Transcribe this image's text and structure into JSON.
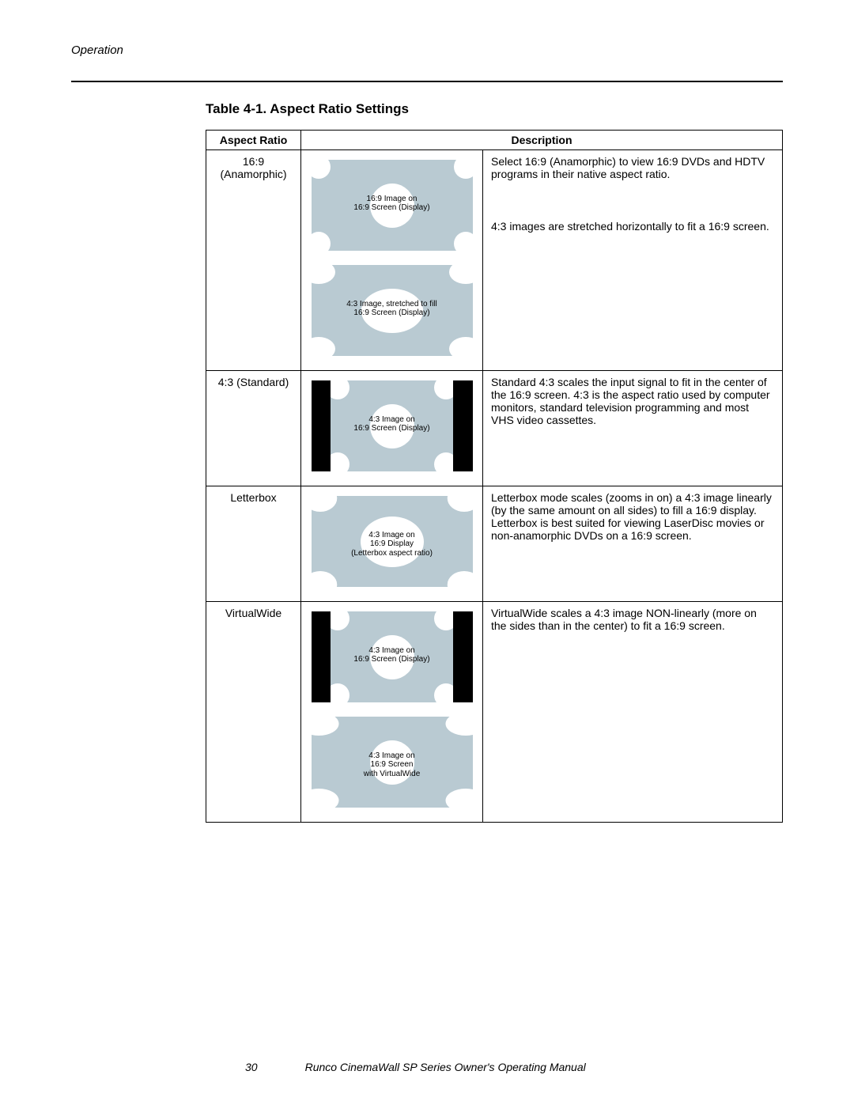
{
  "section": "Operation",
  "table_title": "Table 4-1. Aspect Ratio Settings",
  "headers": {
    "col1": "Aspect Ratio",
    "col2": "Description"
  },
  "diagram_colors": {
    "screen_bg": "#000000",
    "image_bg": "#b9cad2",
    "circle": "#ffffff"
  },
  "rows": [
    {
      "label": "16:9 (Anamorphic)",
      "diagrams": [
        {
          "mode": "full",
          "caption": "16:9 Image on\n16:9 Screen (Display)"
        },
        {
          "mode": "stretched",
          "caption": "4:3 Image, stretched to fill\n16:9 Screen (Display)"
        }
      ],
      "descs": [
        "Select 16:9 (Anamorphic) to view 16:9 DVDs and HDTV programs in their native aspect ratio.",
        "4:3 images are stretched horizontally to fit a 16:9 screen."
      ]
    },
    {
      "label": "4:3 (Standard)",
      "diagrams": [
        {
          "mode": "fourthree",
          "caption": "4:3 Image on\n16:9 Screen (Display)"
        }
      ],
      "descs": [
        "Standard 4:3 scales the input signal to fit in the center of the 16:9 screen. 4:3 is the aspect ratio used by computer monitors, standard television programming and most VHS video cassettes."
      ]
    },
    {
      "label": "Letterbox",
      "diagrams": [
        {
          "mode": "letterbox",
          "caption": "4:3 Image on\n16:9 Display\n(Letterbox aspect ratio)"
        }
      ],
      "descs": [
        "Letterbox mode scales (zooms in on) a 4:3 image linearly (by the same amount on all sides) to fill a 16:9 display. Letterbox is best suited for viewing LaserDisc movies or non-anamorphic DVDs on a 16:9 screen."
      ]
    },
    {
      "label": "VirtualWide",
      "diagrams": [
        {
          "mode": "fourthree",
          "caption": "4:3 Image on\n16:9 Screen (Display)"
        },
        {
          "mode": "vw",
          "caption": "4:3 Image on\n16:9 Screen\nwith VirtualWide"
        }
      ],
      "descs": [
        "VirtualWide scales a 4:3 image NON-linearly (more on the sides than in the center) to fit a 16:9 screen."
      ]
    }
  ],
  "footer": {
    "page": "30",
    "manual": "Runco CinemaWall SP Series Owner's Operating Manual"
  }
}
